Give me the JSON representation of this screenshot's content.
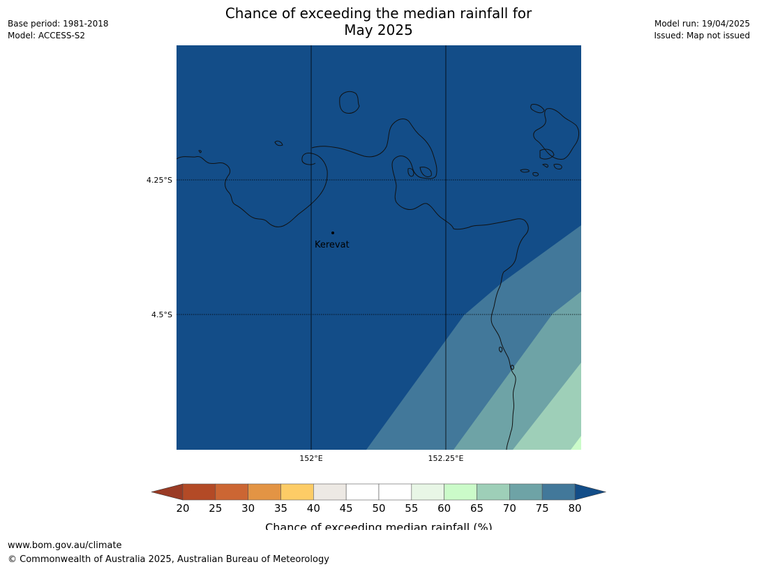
{
  "header": {
    "base_period": "Base period: 1981-2018",
    "model": "Model: ACCESS-S2",
    "model_run": "Model run: 19/04/2025",
    "issued": "Issued: Map not issued"
  },
  "title": {
    "line1": "Chance of exceeding the median rainfall for",
    "line2": "May 2025"
  },
  "map": {
    "latitude_labels": [
      "4.25°S",
      "4.5°S"
    ],
    "longitude_labels": [
      "152°E",
      "152.25°E"
    ],
    "places": [
      {
        "name": "Kerevat"
      }
    ],
    "shading_colors": {
      "75-80": "#42789a",
      "70-75": "#6ea3a6",
      "65-70": "#9ecfb8",
      "60-65": "#cbfbc9",
      "above-80": "#134d88"
    }
  },
  "colorbar": {
    "label": "Chance of exceeding median rainfall (%)",
    "ticks": [
      "20",
      "25",
      "30",
      "35",
      "40",
      "45",
      "50",
      "55",
      "60",
      "65",
      "70",
      "75",
      "80"
    ],
    "below_color": "#9a3b25",
    "above_color": "#134d88",
    "colors": [
      "#b34a26",
      "#cc6633",
      "#e39444",
      "#fdcc66",
      "#ede9e4",
      "#ffffff",
      "#ffffff",
      "#e8f6e6",
      "#cbfbc9",
      "#9ecfb8",
      "#6ea3a6",
      "#42789a"
    ]
  },
  "footer": {
    "url": "www.bom.gov.au/climate",
    "copyright": "© Commonwealth of Australia 2025, Australian Bureau of Meteorology"
  }
}
